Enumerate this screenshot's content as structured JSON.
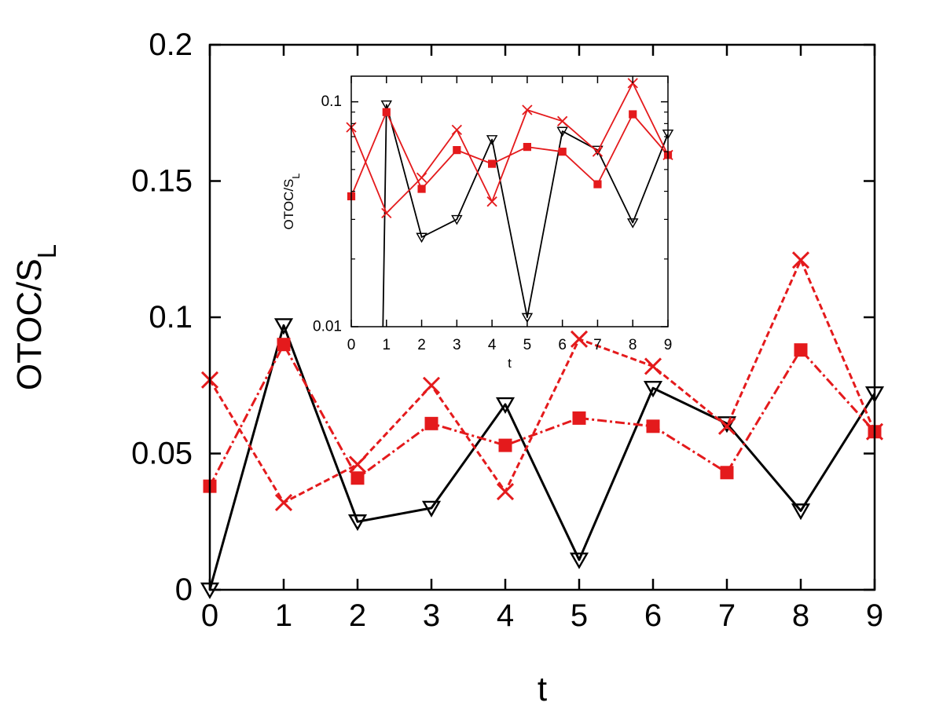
{
  "chart_data": [
    {
      "id": "main",
      "type": "line",
      "xlabel": "t",
      "ylabel": "OTOC/S",
      "ylabel_sub": "L",
      "xlim": [
        0,
        9
      ],
      "ylim": [
        0,
        0.2
      ],
      "yscale": "linear",
      "xticks": [
        0,
        1,
        2,
        3,
        4,
        5,
        6,
        7,
        8,
        9
      ],
      "xtick_labels": [
        "0",
        "1",
        "2",
        "3",
        "4",
        "5",
        "6",
        "7",
        "8",
        "9"
      ],
      "yticks": [
        0,
        0.05,
        0.1,
        0.15,
        0.2
      ],
      "ytick_labels": [
        "0",
        "0.05",
        "0.1",
        "0.15",
        "0.2"
      ],
      "grid": false,
      "series": [
        {
          "marker": "triangle-down",
          "color": "#000000",
          "linestyle": "solid",
          "x": [
            0,
            1,
            2,
            3,
            4,
            5,
            6,
            7,
            8,
            9
          ],
          "y": [
            0.0,
            0.097,
            0.025,
            0.03,
            0.068,
            0.011,
            0.074,
            0.061,
            0.029,
            0.072
          ]
        },
        {
          "marker": "x",
          "color": "#e41a1c",
          "linestyle": "dashed",
          "x": [
            0,
            1,
            2,
            3,
            4,
            5,
            6,
            7,
            8,
            9
          ],
          "y": [
            0.077,
            0.032,
            0.046,
            0.075,
            0.036,
            0.092,
            0.082,
            0.06,
            0.121,
            0.058
          ]
        },
        {
          "marker": "square",
          "color": "#e41a1c",
          "linestyle": "dashdot",
          "x": [
            0,
            1,
            2,
            3,
            4,
            5,
            6,
            7,
            8,
            9
          ],
          "y": [
            0.038,
            0.09,
            0.041,
            0.061,
            0.053,
            0.063,
            0.06,
            0.043,
            0.088,
            0.058
          ]
        }
      ]
    },
    {
      "id": "inset",
      "type": "line",
      "xlabel": "t",
      "ylabel": "OTOC/S",
      "ylabel_sub": "L",
      "xlim": [
        0,
        9
      ],
      "ylim": [
        0.01,
        0.13
      ],
      "yscale": "log",
      "xticks": [
        0,
        1,
        2,
        3,
        4,
        5,
        6,
        7,
        8,
        9
      ],
      "xtick_labels": [
        "0",
        "1",
        "2",
        "3",
        "4",
        "5",
        "6",
        "7",
        "8",
        "9"
      ],
      "yticks": [
        0.01,
        0.1
      ],
      "ytick_labels": [
        "0.01",
        "0.1"
      ],
      "grid": false,
      "series": [
        {
          "marker": "triangle-down",
          "color": "#000000",
          "linestyle": "solid",
          "x": [
            0,
            0.9,
            1,
            2,
            3,
            4,
            5,
            6,
            7,
            8,
            9
          ],
          "y": [
            null,
            0.001,
            0.097,
            0.025,
            0.03,
            0.068,
            0.011,
            0.074,
            0.061,
            0.029,
            0.072
          ]
        },
        {
          "marker": "x",
          "color": "#e41a1c",
          "linestyle": "solid",
          "x": [
            0,
            1,
            2,
            3,
            4,
            5,
            6,
            7,
            8,
            9
          ],
          "y": [
            0.077,
            0.032,
            0.046,
            0.075,
            0.036,
            0.092,
            0.082,
            0.06,
            0.121,
            0.058
          ]
        },
        {
          "marker": "square",
          "color": "#e41a1c",
          "linestyle": "solid",
          "x": [
            0,
            1,
            2,
            3,
            4,
            5,
            6,
            7,
            8,
            9
          ],
          "y": [
            0.038,
            0.09,
            0.041,
            0.061,
            0.053,
            0.063,
            0.06,
            0.043,
            0.088,
            0.058
          ]
        }
      ]
    }
  ]
}
